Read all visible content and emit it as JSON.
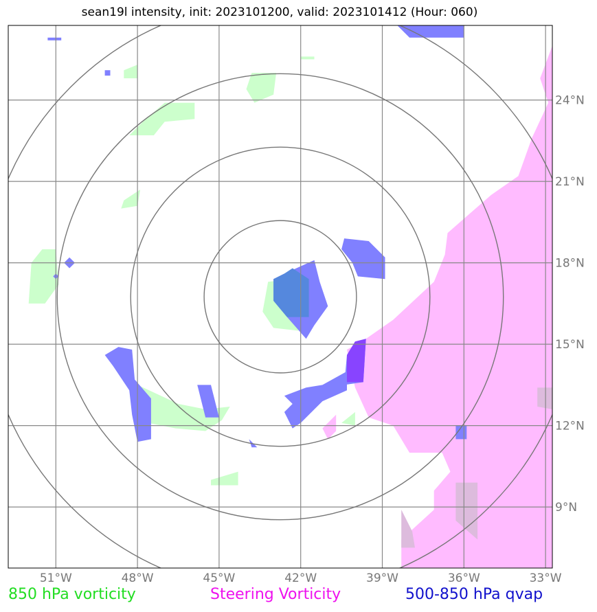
{
  "chart_data": {
    "type": "map",
    "title": "sean19l intensity, init: 2023101200, valid: 2023101412 (Hour: 060)",
    "x_ticks": [
      "51°W",
      "48°W",
      "45°W",
      "42°W",
      "39°W",
      "36°W",
      "33°W"
    ],
    "x_tick_values": [
      -51,
      -48,
      -45,
      -42,
      -39,
      -36,
      -33
    ],
    "y_ticks": [
      "24°N",
      "21°N",
      "18°N",
      "15°N",
      "12°N",
      "9°N"
    ],
    "y_tick_values": [
      24,
      21,
      18,
      15,
      12,
      9
    ],
    "xlim": [
      -52.75,
      -32.75
    ],
    "ylim": [
      6.75,
      26.75
    ],
    "center": {
      "lon": -42.75,
      "lat": 16.75
    },
    "range_rings_deg": [
      2.8,
      5.5,
      8.2,
      10.9
    ],
    "grid": true,
    "legend": [
      {
        "label": "850 hPa vorticity",
        "color": "#22dd22"
      },
      {
        "label": "Steering Vorticity",
        "color": "#ee11ee"
      },
      {
        "label": "500-850 hPa qvap",
        "color": "#1111cc"
      }
    ],
    "fields": [
      {
        "name": "850 hPa vorticity",
        "color": "#ccffcc",
        "polygons": [
          [
            [
              -47.8,
              23.2
            ],
            [
              -47.0,
              23.9
            ],
            [
              -45.9,
              23.9
            ],
            [
              -45.9,
              23.3
            ],
            [
              -47.0,
              23.2
            ],
            [
              -47.4,
              22.7
            ],
            [
              -48.3,
              22.7
            ]
          ],
          [
            [
              -43.0,
              24.2
            ],
            [
              -42.9,
              25.0
            ],
            [
              -43.8,
              25.0
            ],
            [
              -44.0,
              24.4
            ],
            [
              -43.7,
              23.9
            ]
          ],
          [
            [
              -48.5,
              20.3
            ],
            [
              -47.9,
              20.7
            ],
            [
              -48.0,
              20.1
            ],
            [
              -48.6,
              20.0
            ]
          ],
          [
            [
              -51.5,
              18.5
            ],
            [
              -51.0,
              18.5
            ],
            [
              -50.9,
              17.2
            ],
            [
              -51.4,
              16.5
            ],
            [
              -52.0,
              16.5
            ],
            [
              -51.9,
              18.0
            ]
          ],
          [
            [
              -42.3,
              17.4
            ],
            [
              -43.2,
              17.3
            ],
            [
              -43.4,
              16.2
            ],
            [
              -43.0,
              15.6
            ],
            [
              -42.1,
              15.5
            ],
            [
              -41.5,
              16.0
            ],
            [
              -41.6,
              17.0
            ]
          ],
          [
            [
              -48.0,
              13.5
            ],
            [
              -46.5,
              12.8
            ],
            [
              -45.5,
              12.6
            ],
            [
              -44.6,
              12.7
            ],
            [
              -44.9,
              12.2
            ],
            [
              -45.5,
              11.8
            ],
            [
              -46.6,
              11.9
            ],
            [
              -47.6,
              12.1
            ],
            [
              -48.0,
              12.8
            ]
          ],
          [
            [
              -45.3,
              10.0
            ],
            [
              -44.3,
              10.3
            ],
            [
              -44.3,
              9.8
            ],
            [
              -45.3,
              9.8
            ]
          ],
          [
            [
              -39.0,
              15.4
            ],
            [
              -38.4,
              15.0
            ],
            [
              -38.7,
              15.0
            ]
          ],
          [
            [
              -40.5,
              12.1
            ],
            [
              -40.0,
              12.5
            ],
            [
              -40.0,
              12.0
            ]
          ],
          [
            [
              -35.6,
              9.3
            ],
            [
              -34.1,
              9.7
            ],
            [
              -33.6,
              9.5
            ],
            [
              -33.0,
              9.2
            ],
            [
              -33.0,
              8.8
            ],
            [
              -34.3,
              8.7
            ],
            [
              -35.2,
              8.9
            ]
          ],
          [
            [
              -48.5,
              25.1
            ],
            [
              -48.0,
              25.3
            ],
            [
              -48.0,
              24.8
            ],
            [
              -48.5,
              24.8
            ]
          ],
          [
            [
              -42.0,
              25.6
            ],
            [
              -41.5,
              25.6
            ],
            [
              -41.5,
              25.5
            ],
            [
              -42.0,
              25.5
            ]
          ]
        ]
      },
      {
        "name": "Steering Vorticity",
        "color": "#ffbbff",
        "polygons": [
          [
            [
              -32.75,
              26.0
            ],
            [
              -32.75,
              6.75
            ],
            [
              -38.3,
              6.75
            ],
            [
              -38.3,
              7.8
            ],
            [
              -37.1,
              8.9
            ],
            [
              -37.1,
              9.6
            ],
            [
              -36.5,
              10.3
            ],
            [
              -36.8,
              11.0
            ],
            [
              -38.0,
              11.0
            ],
            [
              -38.6,
              12.0
            ],
            [
              -39.5,
              12.3
            ],
            [
              -40.0,
              13.4
            ],
            [
              -40.3,
              14.8
            ],
            [
              -39.6,
              15.2
            ],
            [
              -38.6,
              15.9
            ],
            [
              -37.1,
              17.3
            ],
            [
              -36.7,
              18.3
            ],
            [
              -36.6,
              19.1
            ],
            [
              -35.8,
              19.8
            ],
            [
              -35.0,
              20.5
            ],
            [
              -34.0,
              21.2
            ],
            [
              -33.5,
              22.6
            ],
            [
              -32.9,
              23.9
            ],
            [
              -33.2,
              24.8
            ]
          ],
          [
            [
              -41.2,
              11.9
            ],
            [
              -40.7,
              12.4
            ],
            [
              -40.7,
              11.8
            ],
            [
              -41.0,
              11.5
            ]
          ]
        ]
      },
      {
        "name": "500-850 hPa qvap",
        "color": "#8080ff",
        "polygons": [
          [
            [
              -42.6,
              17.6
            ],
            [
              -41.5,
              18.1
            ],
            [
              -41.3,
              17.3
            ],
            [
              -41.0,
              16.4
            ],
            [
              -41.5,
              15.7
            ],
            [
              -41.8,
              15.2
            ],
            [
              -42.5,
              16.0
            ],
            [
              -43.0,
              16.6
            ],
            [
              -43.0,
              17.4
            ]
          ],
          [
            [
              -40.4,
              18.9
            ],
            [
              -39.5,
              18.8
            ],
            [
              -38.9,
              18.2
            ],
            [
              -38.9,
              17.4
            ],
            [
              -39.9,
              17.5
            ],
            [
              -40.1,
              18.0
            ],
            [
              -40.5,
              18.5
            ]
          ],
          [
            [
              -48.7,
              14.9
            ],
            [
              -48.2,
              14.8
            ],
            [
              -48.1,
              13.7
            ],
            [
              -47.5,
              13.0
            ],
            [
              -47.5,
              11.5
            ],
            [
              -48.0,
              11.4
            ],
            [
              -48.2,
              12.4
            ],
            [
              -48.3,
              13.3
            ],
            [
              -48.9,
              14.2
            ],
            [
              -49.2,
              14.6
            ]
          ],
          [
            [
              -40.0,
              15.1
            ],
            [
              -39.6,
              15.2
            ],
            [
              -39.7,
              13.6
            ],
            [
              -40.4,
              13.5
            ],
            [
              -40.3,
              14.6
            ]
          ],
          [
            [
              -40.3,
              14.0
            ],
            [
              -40.3,
              13.3
            ],
            [
              -41.2,
              12.9
            ],
            [
              -42.0,
              12.1
            ],
            [
              -42.3,
              11.9
            ],
            [
              -42.6,
              12.5
            ],
            [
              -42.3,
              12.8
            ],
            [
              -42.6,
              13.1
            ],
            [
              -41.8,
              13.4
            ],
            [
              -41.2,
              13.5
            ]
          ],
          [
            [
              -45.8,
              13.5
            ],
            [
              -45.3,
              13.5
            ],
            [
              -45.0,
              12.3
            ],
            [
              -45.5,
              12.3
            ]
          ],
          [
            [
              -43.9,
              11.5
            ],
            [
              -43.6,
              11.2
            ],
            [
              -43.2,
              11.2
            ],
            [
              -43.8,
              11.2
            ]
          ],
          [
            [
              -36.3,
              12.0
            ],
            [
              -35.9,
              12.0
            ],
            [
              -35.9,
              11.5
            ],
            [
              -36.3,
              11.5
            ]
          ],
          [
            [
              -38.5,
              26.8
            ],
            [
              -36.0,
              26.8
            ],
            [
              -36.0,
              26.3
            ],
            [
              -38.0,
              26.3
            ]
          ],
          [
            [
              -50.5,
              18.2
            ],
            [
              -50.3,
              18.0
            ],
            [
              -50.5,
              17.8
            ],
            [
              -50.7,
              18.0
            ]
          ],
          [
            [
              -51.0,
              17.6
            ],
            [
              -50.9,
              17.5
            ],
            [
              -51.0,
              17.4
            ],
            [
              -51.1,
              17.5
            ]
          ],
          [
            [
              -51.3,
              26.3
            ],
            [
              -50.8,
              26.3
            ],
            [
              -50.8,
              26.2
            ],
            [
              -51.3,
              26.2
            ]
          ],
          [
            [
              -49.2,
              25.1
            ],
            [
              -49.0,
              25.1
            ],
            [
              -49.0,
              24.9
            ],
            [
              -49.2,
              24.9
            ]
          ]
        ]
      },
      {
        "name": "overlap",
        "color": "#5588dd",
        "polygons": [
          [
            [
              -42.6,
              17.6
            ],
            [
              -42.3,
              17.8
            ],
            [
              -41.7,
              17.4
            ],
            [
              -41.7,
              16.0
            ],
            [
              -42.5,
              16.0
            ],
            [
              -43.0,
              16.6
            ],
            [
              -43.0,
              17.4
            ]
          ]
        ]
      },
      {
        "name": "overlap",
        "color": "#8844ff",
        "polygons": [
          [
            [
              -40.0,
              15.1
            ],
            [
              -39.6,
              15.2
            ],
            [
              -39.7,
              13.6
            ],
            [
              -40.3,
              13.6
            ],
            [
              -40.3,
              14.6
            ]
          ]
        ]
      },
      {
        "name": "overlap",
        "color": "#ddbbdd",
        "polygons": [
          [
            [
              -36.3,
              9.9
            ],
            [
              -35.5,
              9.9
            ],
            [
              -35.5,
              7.8
            ],
            [
              -36.3,
              8.5
            ]
          ],
          [
            [
              -38.3,
              8.9
            ],
            [
              -37.9,
              8.1
            ],
            [
              -37.8,
              7.5
            ],
            [
              -38.3,
              7.5
            ]
          ],
          [
            [
              -33.3,
              13.4
            ],
            [
              -32.75,
              13.4
            ],
            [
              -32.75,
              12.6
            ],
            [
              -33.3,
              12.7
            ]
          ]
        ]
      }
    ]
  }
}
